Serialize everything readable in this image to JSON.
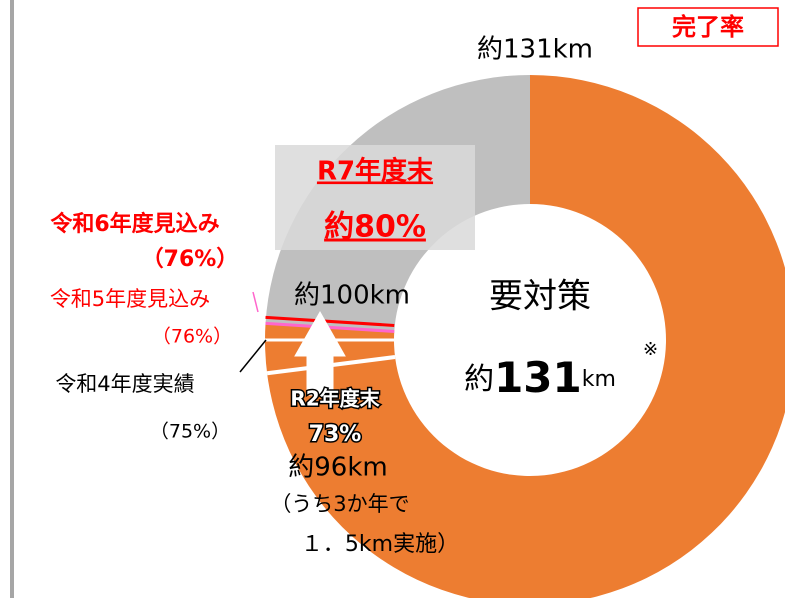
{
  "chart_data": {
    "type": "donut",
    "title": "完了率",
    "ylim": [
      0,
      100
    ],
    "done_color": "#ed7d31",
    "rest_color": "#bfbfbf",
    "outer_label": "約131km",
    "rest_label": "約100km",
    "center": {
      "title": "要対策",
      "prefix": "約",
      "number": "131",
      "unit": "km",
      "note": "※"
    },
    "milestones": [
      {
        "label": "R2年度末",
        "value": 73,
        "value_label": "73%",
        "color": "#ffffff",
        "extra": [
          "約96km",
          "（うち3か年で",
          "１．5km実施）"
        ]
      },
      {
        "label": "令和4年度実績",
        "value": 75,
        "value_label": "（75%）",
        "color": "#ffffff"
      },
      {
        "label": "令和5年度見込み",
        "value": 76,
        "value_label": "（76%）",
        "color": "#ff66cc"
      },
      {
        "label": "令和6年度見込み",
        "value": 76,
        "value_label": "（76%）",
        "color": "#ff0000"
      },
      {
        "label": "R7年度末",
        "value": 80,
        "value_label": "約80%",
        "color": "#ff0000"
      }
    ]
  }
}
